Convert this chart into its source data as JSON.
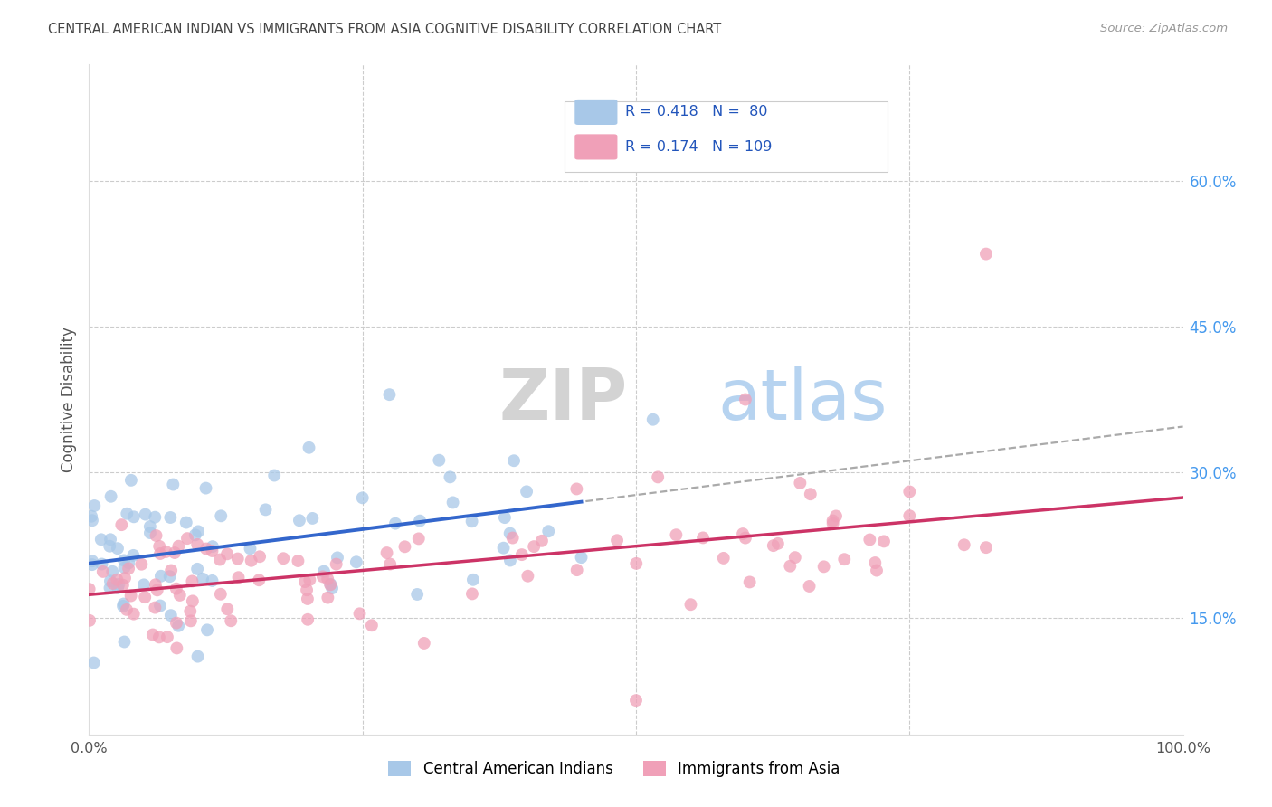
{
  "title": "CENTRAL AMERICAN INDIAN VS IMMIGRANTS FROM ASIA COGNITIVE DISABILITY CORRELATION CHART",
  "source": "Source: ZipAtlas.com",
  "ylabel": "Cognitive Disability",
  "xlim": [
    0.0,
    1.0
  ],
  "ylim": [
    0.03,
    0.72
  ],
  "ytick_vals_right": [
    0.15,
    0.3,
    0.45,
    0.6
  ],
  "ytick_labels_right": [
    "15.0%",
    "30.0%",
    "45.0%",
    "60.0%"
  ],
  "blue_color": "#a8c8e8",
  "blue_line_color": "#3366cc",
  "pink_color": "#f0a0b8",
  "pink_line_color": "#cc3366",
  "dash_color": "#aaaaaa",
  "legend_label_blue": "Central American Indians",
  "legend_label_pink": "Immigrants from Asia",
  "watermark": "ZIPatlas",
  "background_color": "#ffffff",
  "grid_color": "#cccccc"
}
